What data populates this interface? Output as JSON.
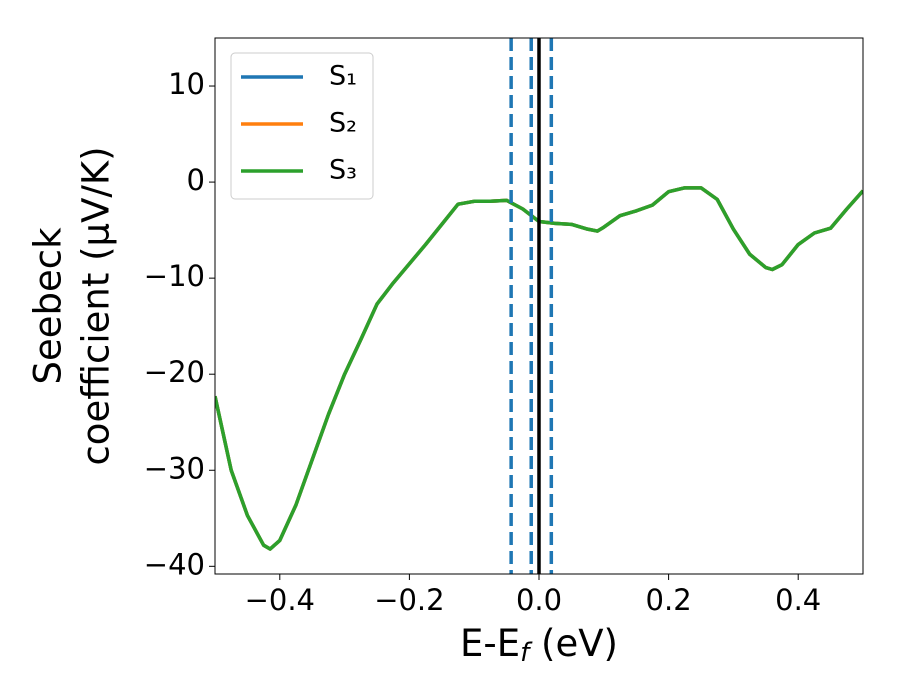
{
  "chart_data": {
    "type": "line",
    "xlabel": [
      "E-E",
      "f",
      " (eV)"
    ],
    "ylabel": [
      "Seebeck",
      "coefficient  (μV/K)"
    ],
    "xlim": [
      -0.5,
      0.5
    ],
    "ylim": [
      -40.8,
      15
    ],
    "xticks": [
      {
        "value": -0.4,
        "label": "−0.4"
      },
      {
        "value": -0.2,
        "label": "−0.2"
      },
      {
        "value": 0.0,
        "label": "0.0"
      },
      0.2,
      0.4
    ],
    "yticks": [
      {
        "value": -40,
        "label": "−40"
      },
      {
        "value": -30,
        "label": "−30"
      },
      {
        "value": -20,
        "label": "−20"
      },
      {
        "value": -10,
        "label": "−10"
      },
      0,
      10
    ],
    "legend": "upper left",
    "x": [
      -0.5,
      -0.475,
      -0.45,
      -0.425,
      -0.415,
      -0.4,
      -0.375,
      -0.35,
      -0.325,
      -0.3,
      -0.275,
      -0.25,
      -0.225,
      -0.2,
      -0.175,
      -0.15,
      -0.125,
      -0.1,
      -0.075,
      -0.05,
      -0.025,
      0,
      0.025,
      0.05,
      0.075,
      0.09,
      0.1,
      0.125,
      0.15,
      0.175,
      0.2,
      0.225,
      0.25,
      0.275,
      0.3,
      0.325,
      0.35,
      0.36,
      0.375,
      0.4,
      0.425,
      0.45,
      0.475,
      0.5
    ],
    "series": [
      {
        "name": "S₁",
        "color": "#1f77b4",
        "values": [
          -22.3,
          -30,
          -34.7,
          -37.8,
          -38.2,
          -37.3,
          -33.6,
          -28.9,
          -24.2,
          -20,
          -16.4,
          -12.7,
          -10.5,
          -8.5,
          -6.5,
          -4.4,
          -2.3,
          -2.0,
          -2.0,
          -1.9,
          -2.8,
          -4.1,
          -4.3,
          -4.4,
          -4.9,
          -5.1,
          -4.7,
          -3.5,
          -3.0,
          -2.4,
          -1.0,
          -0.6,
          -0.6,
          -1.8,
          -4.9,
          -7.5,
          -8.9,
          -9.1,
          -8.6,
          -6.5,
          -5.3,
          -4.8,
          -2.8,
          -0.9
        ]
      },
      {
        "name": "S₂",
        "color": "#ff7f0e",
        "values": [
          -22.3,
          -30,
          -34.7,
          -37.8,
          -38.2,
          -37.3,
          -33.6,
          -28.9,
          -24.2,
          -20,
          -16.4,
          -12.7,
          -10.5,
          -8.5,
          -6.5,
          -4.4,
          -2.3,
          -2.0,
          -2.0,
          -1.9,
          -2.8,
          -4.1,
          -4.3,
          -4.4,
          -4.9,
          -5.1,
          -4.7,
          -3.5,
          -3.0,
          -2.4,
          -1.0,
          -0.6,
          -0.6,
          -1.8,
          -4.9,
          -7.5,
          -8.9,
          -9.1,
          -8.6,
          -6.5,
          -5.3,
          -4.8,
          -2.8,
          -0.9
        ]
      },
      {
        "name": "S₃",
        "color": "#2ca02c",
        "values": [
          -22.3,
          -30,
          -34.7,
          -37.8,
          -38.2,
          -37.3,
          -33.6,
          -28.9,
          -24.2,
          -20,
          -16.4,
          -12.7,
          -10.5,
          -8.5,
          -6.5,
          -4.4,
          -2.3,
          -2.0,
          -2.0,
          -1.9,
          -2.8,
          -4.1,
          -4.3,
          -4.4,
          -4.9,
          -5.1,
          -4.7,
          -3.5,
          -3.0,
          -2.4,
          -1.0,
          -0.6,
          -0.6,
          -1.8,
          -4.9,
          -7.5,
          -8.9,
          -9.1,
          -8.6,
          -6.5,
          -5.3,
          -4.8,
          -2.8,
          -0.9
        ]
      }
    ],
    "vlines": [
      {
        "x": -0.043,
        "color": "#1f77b4",
        "dashed": true
      },
      {
        "x": -0.012,
        "color": "#1f77b4",
        "dashed": true
      },
      {
        "x": 0.019,
        "color": "#1f77b4",
        "dashed": true
      },
      {
        "x": 0,
        "color": "#000000",
        "dashed": false
      }
    ]
  }
}
